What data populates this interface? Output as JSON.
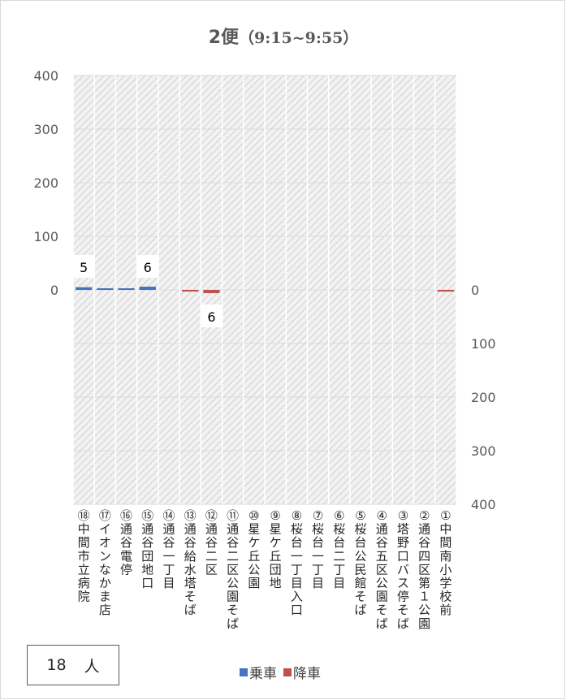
{
  "chart_data": {
    "type": "bar",
    "title": "2便",
    "subtitle": "（9:15~9:55）",
    "categories": [
      "⑱中間市立病院",
      "⑰イオンなかま店",
      "⑯通谷電停",
      "⑮通谷団地口",
      "⑭通谷一丁目",
      "⑬通谷給水塔そば",
      "⑫通谷二区",
      "⑪通谷二区公園そば",
      "⑩星ケ丘公園",
      "⑨星ケ丘団地",
      "⑧桜台一丁目入口",
      "⑦桜台一丁目",
      "⑥桜台二丁目",
      "⑤桜台公民館そば",
      "④通谷五区公園そば",
      "③塔野口バス停そば",
      "②通谷四区第１公園",
      "①中間南小学校前"
    ],
    "series": [
      {
        "name": "乗車",
        "color": "#4472c4",
        "values": [
          5,
          1,
          1,
          6,
          0,
          0,
          0,
          0,
          0,
          0,
          0,
          0,
          0,
          0,
          0,
          0,
          0,
          0
        ]
      },
      {
        "name": "降車",
        "color": "#c0504d",
        "values": [
          0,
          0,
          0,
          0,
          0,
          3,
          6,
          0,
          0,
          0,
          0,
          0,
          0,
          0,
          0,
          0,
          0,
          1
        ]
      }
    ],
    "data_labels": {
      "乗車": [
        "5",
        "",
        "",
        "6",
        "",
        "",
        "",
        "",
        "",
        "",
        "",
        "",
        "",
        "",
        "",
        "",
        "",
        ""
      ],
      "降車": [
        "",
        "",
        "",
        "",
        "",
        "",
        "6",
        "",
        "",
        "",
        "",
        "",
        "",
        "",
        "",
        "",
        "",
        ""
      ]
    },
    "left_axis": {
      "ylim": [
        0,
        400
      ],
      "ticks": [
        "400",
        "300",
        "200",
        "100",
        "0"
      ]
    },
    "right_axis": {
      "ylim": [
        0,
        400
      ],
      "ticks": [
        "0",
        "100",
        "200",
        "300",
        "400"
      ]
    },
    "grid": true,
    "legend_position": "bottom"
  },
  "total": {
    "value": "18",
    "unit": "人"
  }
}
